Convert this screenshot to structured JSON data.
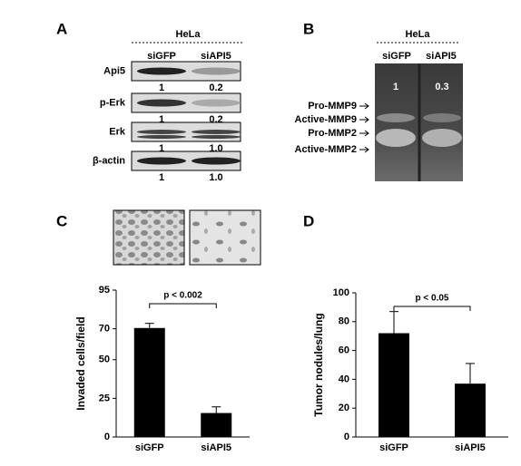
{
  "panel_a": {
    "label": "A",
    "cell_line": "HeLa",
    "columns": [
      "siGFP",
      "siAPI5"
    ],
    "rows": [
      {
        "name": "Api5",
        "values": [
          "1",
          "0.2"
        ]
      },
      {
        "name": "p-Erk",
        "values": [
          "1",
          "0.2"
        ]
      },
      {
        "name": "Erk",
        "values": [
          "1",
          "1.0"
        ]
      },
      {
        "name": "β-actin",
        "values": [
          "1",
          "1.0"
        ]
      }
    ]
  },
  "panel_b": {
    "label": "B",
    "cell_line": "HeLa",
    "columns": [
      "siGFP",
      "siAPI5"
    ],
    "values": [
      "1",
      "0.3"
    ],
    "bands": [
      "Pro-MMP9",
      "Active-MMP9",
      "Pro-MMP2",
      "Active-MMP2"
    ]
  },
  "chart_data": [
    {
      "type": "bar",
      "panel_label": "C",
      "ylabel": "Invaded cells/field",
      "categories": [
        "siGFP",
        "siAPI5"
      ],
      "values": [
        70.5,
        15.5
      ],
      "errors": [
        3,
        4
      ],
      "color": "#000000",
      "ylim": [
        0,
        95
      ],
      "yticks": [
        0,
        25,
        50,
        70,
        95
      ],
      "annotation": "p < 0.002"
    },
    {
      "type": "bar",
      "panel_label": "D",
      "ylabel": "Tumor nodules/lung",
      "categories": [
        "siGFP",
        "siAPI5"
      ],
      "values": [
        72,
        37
      ],
      "errors": [
        15,
        14
      ],
      "color": "#000000",
      "ylim": [
        0,
        100
      ],
      "yticks": [
        0,
        20,
        40,
        60,
        80,
        100
      ],
      "annotation": "p < 0.05"
    }
  ]
}
